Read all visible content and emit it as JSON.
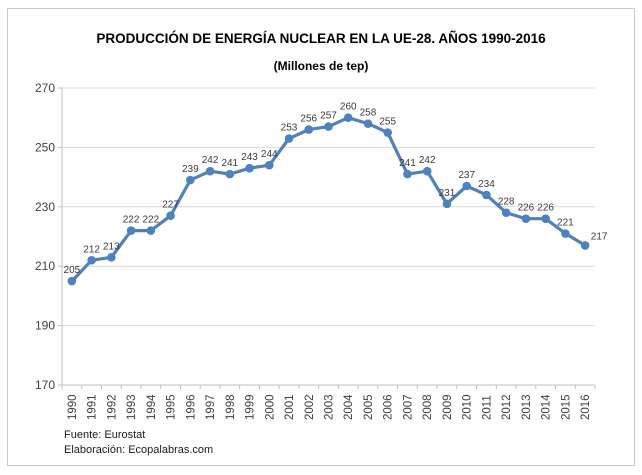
{
  "chart": {
    "title": "PRODUCCIÓN DE ENERGÍA NUCLEAR EN LA UE-28. AÑOS 1990-2016",
    "subtitle": "(Millones de tep)",
    "source": "Fuente: Eurostat",
    "credit": "Elaboración: Ecopalabras.com"
  },
  "chart_data": {
    "type": "line",
    "title": "PRODUCCIÓN DE ENERGÍA NUCLEAR EN LA UE-28. AÑOS 1990-2016",
    "subtitle": "(Millones de tep)",
    "categories": [
      "1990",
      "1991",
      "1992",
      "1993",
      "1994",
      "1995",
      "1996",
      "1997",
      "1998",
      "1999",
      "2000",
      "2001",
      "2002",
      "2003",
      "2004",
      "2005",
      "2006",
      "2007",
      "2008",
      "2009",
      "2010",
      "2011",
      "2012",
      "2013",
      "2014",
      "2015",
      "2016"
    ],
    "values": [
      205,
      212,
      213,
      222,
      222,
      227,
      239,
      242,
      241,
      243,
      244,
      253,
      256,
      257,
      260,
      258,
      255,
      241,
      242,
      231,
      237,
      234,
      228,
      226,
      226,
      221,
      217
    ],
    "xlabel": "",
    "ylabel": "",
    "ylim": [
      170,
      270
    ],
    "yticks": [
      170,
      190,
      210,
      230,
      250,
      270
    ],
    "grid": "horizontal",
    "legend_position": "none",
    "data_labels": true,
    "colors": {
      "line": "#4F81BD",
      "marker": "#4F81BD",
      "gridline": "#d9d9d9",
      "axis": "#bfbfbf",
      "tick": "#bfbfbf",
      "axis_text": "#3f3f3f",
      "data_label_text": "#3b3b3b"
    }
  }
}
